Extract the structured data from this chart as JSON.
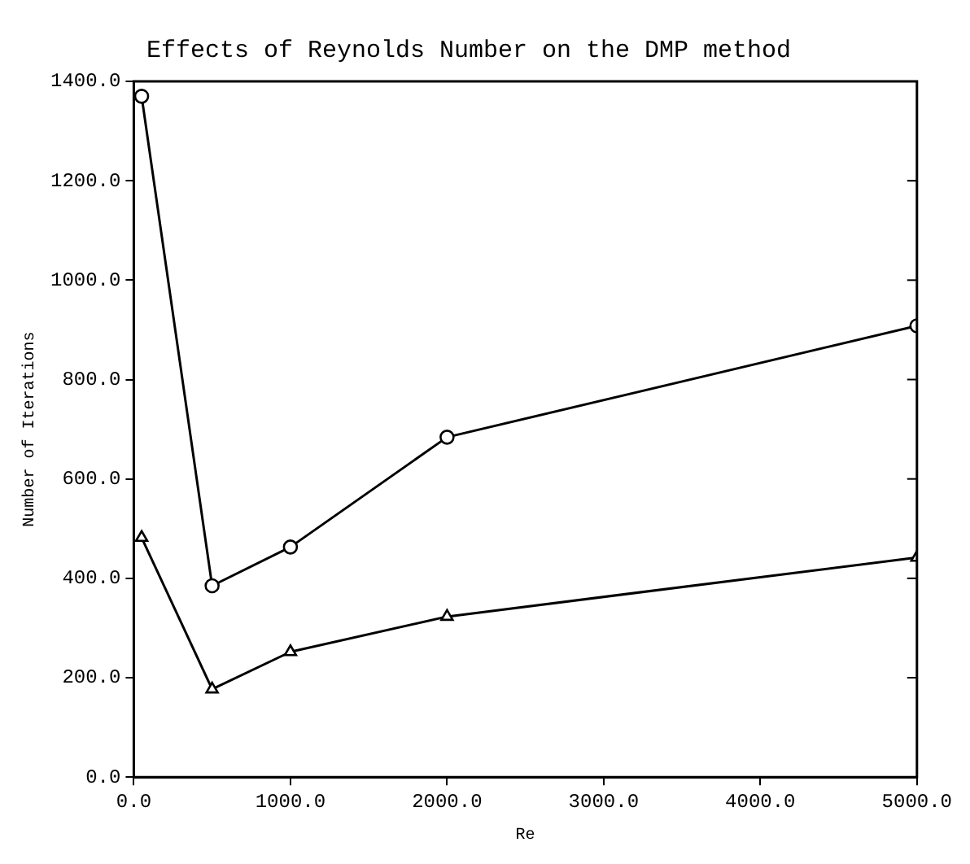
{
  "chart_data": {
    "type": "line",
    "title": "Effects of Reynolds Number on the DMP method",
    "xlabel": "Re",
    "ylabel": "Number of Iterations",
    "x": [
      50,
      500,
      1000,
      2000,
      5000
    ],
    "series": [
      {
        "color": "#000000",
        "marker": "circle",
        "values": [
          1370,
          385,
          463,
          684,
          908
        ]
      },
      {
        "color": "#000000",
        "marker": "triangle",
        "values": [
          482,
          177,
          252,
          323,
          442
        ]
      }
    ],
    "xlim": [
      0,
      5000
    ],
    "xticks": [
      {
        "value": 0,
        "label": "0.0"
      },
      {
        "value": 1000,
        "label": "1000.0"
      },
      {
        "value": 2000,
        "label": "2000.0"
      },
      {
        "value": 3000,
        "label": "3000.0"
      },
      {
        "value": 4000,
        "label": "4000.0"
      },
      {
        "value": 5000,
        "label": "5000.0"
      }
    ],
    "ylim": [
      0,
      1400
    ],
    "yticks": [
      {
        "value": 0,
        "label": "0.0"
      },
      {
        "value": 200,
        "label": "200.0"
      },
      {
        "value": 400,
        "label": "400.0"
      },
      {
        "value": 600,
        "label": "600.0"
      },
      {
        "value": 800,
        "label": "800.0"
      },
      {
        "value": 1000,
        "label": "1000.0"
      },
      {
        "value": 1200,
        "label": "1200.0"
      },
      {
        "value": 1400,
        "label": "1400.0"
      }
    ],
    "grid": false,
    "legend": false,
    "line_style": "solid"
  }
}
